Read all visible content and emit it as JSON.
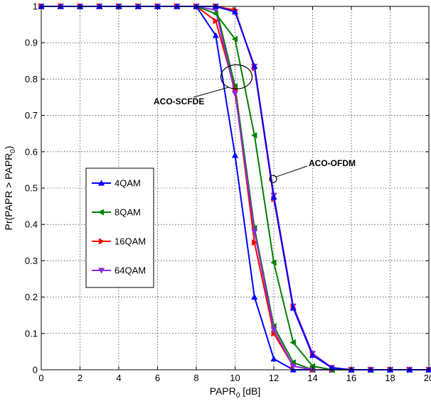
{
  "chart_data": {
    "type": "line",
    "xlabel_main": "PAPR",
    "xlabel_sub": "0",
    "xlabel_tail": " [dB]",
    "ylabel_main": "Pr(PAPR > PAPR",
    "ylabel_sub": "0",
    "ylabel_tail": ")",
    "xlim": [
      0,
      20
    ],
    "ylim": [
      0,
      1
    ],
    "xticks": [
      "0",
      "2",
      "4",
      "6",
      "8",
      "10",
      "12",
      "14",
      "16",
      "18",
      "20"
    ],
    "yticks": [
      "0",
      "0.1",
      "0.2",
      "0.3",
      "0.4",
      "0.5",
      "0.6",
      "0.7",
      "0.8",
      "0.9",
      "1"
    ],
    "grid": true,
    "legend_position": "left-middle",
    "annotations": [
      {
        "text": "ACO-SCFDE",
        "target_x": 10,
        "target_y": 0.81
      },
      {
        "text": "ACO-OFDM",
        "target_x": 12,
        "target_y": 0.525
      }
    ],
    "series": [
      {
        "name": "4QAM",
        "group": "ACO-SCFDE",
        "marker": "triangle-up",
        "color": "#0000ff",
        "x": [
          0,
          1,
          2,
          3,
          4,
          5,
          6,
          7,
          8,
          9,
          10,
          11,
          12,
          13,
          14,
          15,
          16,
          17,
          18,
          19,
          20
        ],
        "y": [
          1,
          1,
          1,
          1,
          1,
          1,
          1,
          1,
          1,
          0.92,
          0.59,
          0.2,
          0.03,
          0.0,
          0,
          0,
          0,
          0,
          0,
          0,
          0
        ]
      },
      {
        "name": "8QAM",
        "group": "ACO-SCFDE",
        "marker": "triangle-left",
        "color": "#008000",
        "x": [
          0,
          1,
          2,
          3,
          4,
          5,
          6,
          7,
          8,
          9,
          10,
          11,
          12,
          13,
          14,
          15,
          16,
          17,
          18,
          19,
          20
        ],
        "y": [
          1,
          1,
          1,
          1,
          1,
          1,
          1,
          1,
          1,
          1,
          0.78,
          0.39,
          0.12,
          0.02,
          0,
          0,
          0,
          0,
          0,
          0,
          0
        ]
      },
      {
        "name": "16QAM",
        "group": "ACO-SCFDE",
        "marker": "triangle-right",
        "color": "#ff0000",
        "x": [
          0,
          1,
          2,
          3,
          4,
          5,
          6,
          7,
          8,
          9,
          10,
          11,
          12,
          13,
          14,
          15,
          16,
          17,
          18,
          19,
          20
        ],
        "y": [
          1,
          1,
          1,
          1,
          1,
          1,
          1,
          1,
          1,
          0.96,
          0.77,
          0.35,
          0.1,
          0.01,
          0,
          0,
          0,
          0,
          0,
          0,
          0
        ]
      },
      {
        "name": "64QAM",
        "group": "ACO-SCFDE",
        "marker": "triangle-down",
        "color": "#8b2be2",
        "x": [
          0,
          1,
          2,
          3,
          4,
          5,
          6,
          7,
          8,
          9,
          10,
          11,
          12,
          13,
          14,
          15,
          16,
          17,
          18,
          19,
          20
        ],
        "y": [
          1,
          1,
          1,
          1,
          1,
          1,
          1,
          1,
          1,
          0.99,
          0.76,
          0.38,
          0.11,
          0.01,
          0,
          0,
          0,
          0,
          0,
          0,
          0
        ]
      },
      {
        "name": "8QAM",
        "group": "ACO-OFDM",
        "marker": "triangle-left",
        "color": "#008000",
        "x": [
          0,
          1,
          2,
          3,
          4,
          5,
          6,
          7,
          8,
          9,
          10,
          11,
          12,
          13,
          14,
          15,
          16,
          17,
          18,
          19,
          20
        ],
        "y": [
          1,
          1,
          1,
          1,
          1,
          1,
          1,
          1,
          1,
          0.98,
          0.91,
          0.645,
          0.295,
          0.075,
          0.01,
          0.0,
          0,
          0,
          0,
          0,
          0
        ]
      },
      {
        "name": "64QAM",
        "group": "ACO-OFDM",
        "marker": "triangle-down",
        "color": "#8b2be2",
        "x": [
          0,
          1,
          2,
          3,
          4,
          5,
          6,
          7,
          8,
          9,
          10,
          11,
          12,
          13,
          14,
          15,
          16,
          17,
          18,
          19,
          20
        ],
        "y": [
          1,
          1,
          1,
          1,
          1,
          1,
          1,
          1,
          1,
          1,
          0.985,
          0.835,
          0.48,
          0.175,
          0.045,
          0.006,
          0,
          0,
          0,
          0,
          0
        ]
      },
      {
        "name": "16QAM",
        "group": "ACO-OFDM",
        "marker": "triangle-right",
        "color": "#ff0000",
        "x": [
          0,
          1,
          2,
          3,
          4,
          5,
          6,
          7,
          8,
          9,
          10,
          11,
          12,
          13,
          14,
          15,
          16,
          17,
          18,
          19,
          20
        ],
        "y": [
          1,
          1,
          1,
          1,
          1,
          1,
          1,
          1,
          1,
          1,
          0.99,
          0.83,
          0.47,
          0.17,
          0.04,
          0.005,
          0,
          0,
          0,
          0,
          0
        ]
      },
      {
        "name": "4QAM",
        "group": "ACO-OFDM",
        "marker": "triangle-up",
        "color": "#0000ff",
        "x": [
          0,
          1,
          2,
          3,
          4,
          5,
          6,
          7,
          8,
          9,
          10,
          11,
          12,
          13,
          14,
          15,
          16,
          17,
          18,
          19,
          20
        ],
        "y": [
          1,
          1,
          1,
          1,
          1,
          1,
          1,
          1,
          1,
          1,
          0.985,
          0.835,
          0.475,
          0.17,
          0.04,
          0.005,
          0,
          0,
          0,
          0,
          0
        ]
      }
    ],
    "legend": [
      {
        "label": "4QAM",
        "color": "#0000ff",
        "marker": "triangle-up"
      },
      {
        "label": "8QAM",
        "color": "#008000",
        "marker": "triangle-left"
      },
      {
        "label": "16QAM",
        "color": "#ff0000",
        "marker": "triangle-right"
      },
      {
        "label": "64QAM",
        "color": "#8b2be2",
        "marker": "triangle-down"
      }
    ]
  }
}
